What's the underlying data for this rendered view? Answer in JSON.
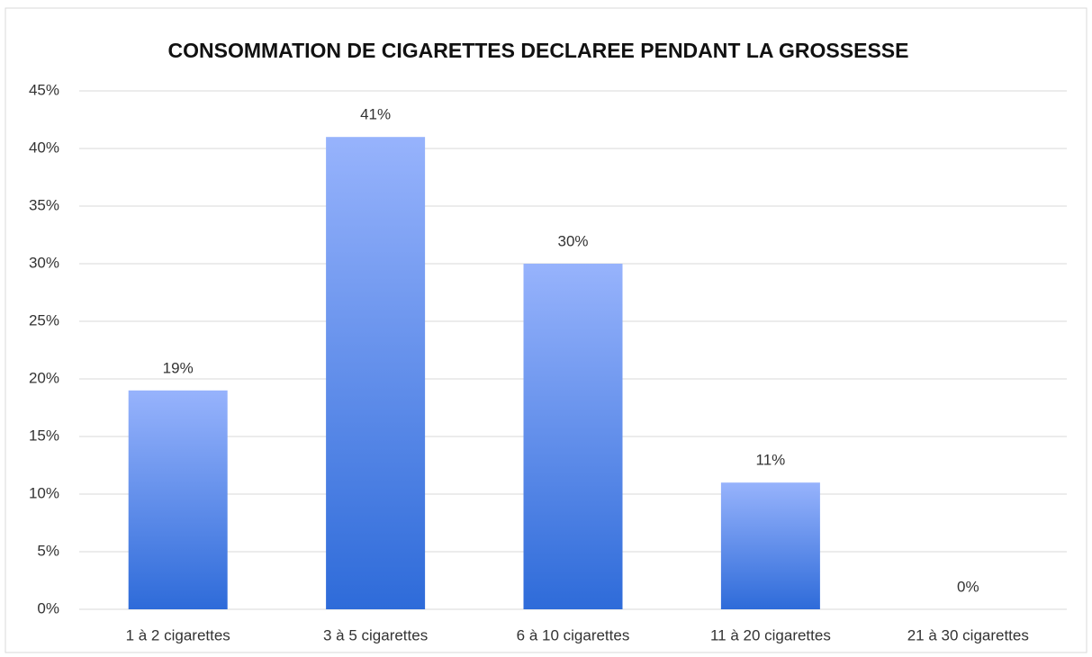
{
  "chart_data": {
    "type": "bar",
    "title": "CONSOMMATION DE CIGARETTES DECLAREE PENDANT LA GROSSESSE",
    "categories": [
      "1 à 2 cigarettes",
      "3 à 5 cigarettes",
      "6 à 10 cigarettes",
      "11 à 20 cigarettes",
      "21 à 30 cigarettes"
    ],
    "values": [
      19,
      41,
      30,
      11,
      0
    ],
    "value_labels": [
      "19%",
      "41%",
      "30%",
      "11%",
      "0%"
    ],
    "color": [
      "#97b3fc",
      "#2e6bd9"
    ],
    "ylim": [
      0,
      45
    ],
    "yticks": [
      {
        "value": 0,
        "label": "0%"
      },
      {
        "value": 5,
        "label": "5%"
      },
      {
        "value": 10,
        "label": "10%"
      },
      {
        "value": 15,
        "label": "15%"
      },
      {
        "value": 20,
        "label": "20%"
      },
      {
        "value": 25,
        "label": "25%"
      },
      {
        "value": 30,
        "label": "30%"
      },
      {
        "value": 35,
        "label": "35%"
      },
      {
        "value": 40,
        "label": "40%"
      },
      {
        "value": 45,
        "label": "45%"
      }
    ],
    "grid": true
  }
}
